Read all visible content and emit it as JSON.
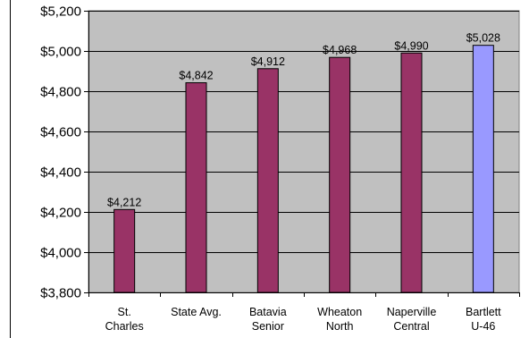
{
  "chart_data": {
    "type": "bar",
    "categories": [
      [
        "St.",
        "Charles"
      ],
      [
        "State Avg."
      ],
      [
        "Batavia",
        "Senior"
      ],
      [
        "Wheaton",
        "North"
      ],
      [
        "Naperville",
        "Central"
      ],
      [
        "Bartlett",
        "U-46"
      ]
    ],
    "values": [
      4212,
      4842,
      4912,
      4968,
      4990,
      5028
    ],
    "data_labels": [
      "$4,212",
      "$4,842",
      "$4,912",
      "$4,968",
      "$4,990",
      "$5,028"
    ],
    "bar_colors": [
      "#993366",
      "#993366",
      "#993366",
      "#993366",
      "#993366",
      "#9999ff"
    ],
    "ylim": [
      3800,
      5200
    ],
    "yticks": [
      3800,
      4000,
      4200,
      4400,
      4600,
      4800,
      5000,
      5200
    ],
    "ytick_labels": [
      "$3,800",
      "$4,000",
      "$4,200",
      "$4,400",
      "$4,600",
      "$4,800",
      "$5,000",
      "$5,200"
    ],
    "grid": true,
    "legend": "none",
    "title": "",
    "xlabel": "",
    "ylabel": "",
    "plot_background": "#c0c0c0",
    "gridline_color": "#000000"
  }
}
